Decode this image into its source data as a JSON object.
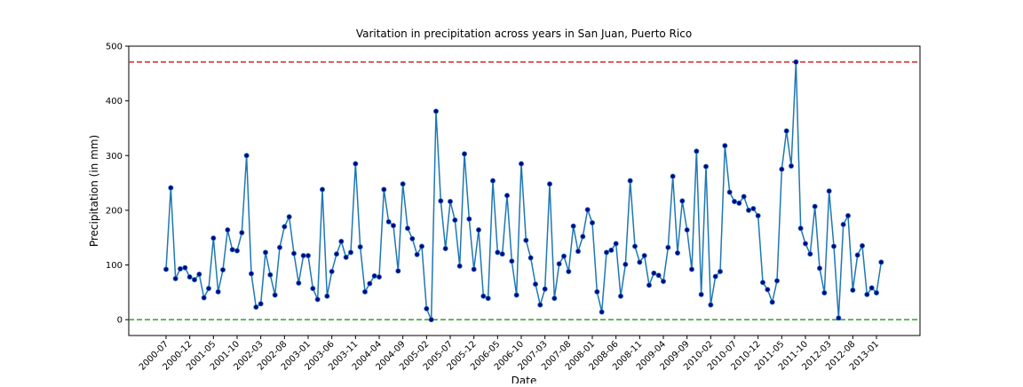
{
  "chart_data": {
    "type": "line",
    "title": "Varitation in precipitation across years in San Juan, Puerto Rico",
    "xlabel": "Date",
    "ylabel": "Precipitation (in mm)",
    "x": [
      "2000-07",
      "2000-08",
      "2000-09",
      "2000-10",
      "2000-11",
      "2000-12",
      "2001-01",
      "2001-02",
      "2001-03",
      "2001-04",
      "2001-05",
      "2001-06",
      "2001-07",
      "2001-08",
      "2001-09",
      "2001-10",
      "2001-11",
      "2001-12",
      "2002-01",
      "2002-02",
      "2002-03",
      "2002-04",
      "2002-05",
      "2002-06",
      "2002-07",
      "2002-08",
      "2002-09",
      "2002-10",
      "2002-11",
      "2002-12",
      "2003-01",
      "2003-02",
      "2003-03",
      "2003-04",
      "2003-05",
      "2003-06",
      "2003-07",
      "2003-08",
      "2003-09",
      "2003-10",
      "2003-11",
      "2003-12",
      "2004-01",
      "2004-02",
      "2004-03",
      "2004-04",
      "2004-05",
      "2004-06",
      "2004-07",
      "2004-08",
      "2004-09",
      "2004-10",
      "2004-11",
      "2004-12",
      "2005-01",
      "2005-02",
      "2005-03",
      "2005-04",
      "2005-05",
      "2005-06",
      "2005-07",
      "2005-08",
      "2005-09",
      "2005-10",
      "2005-11",
      "2005-12",
      "2006-01",
      "2006-02",
      "2006-03",
      "2006-04",
      "2006-05",
      "2006-06",
      "2006-07",
      "2006-08",
      "2006-09",
      "2006-10",
      "2006-11",
      "2006-12",
      "2007-01",
      "2007-02",
      "2007-03",
      "2007-04",
      "2007-05",
      "2007-06",
      "2007-07",
      "2007-08",
      "2007-09",
      "2007-10",
      "2007-11",
      "2007-12",
      "2008-01",
      "2008-02",
      "2008-03",
      "2008-04",
      "2008-05",
      "2008-06",
      "2008-07",
      "2008-08",
      "2008-09",
      "2008-10",
      "2008-11",
      "2008-12",
      "2009-01",
      "2009-02",
      "2009-03",
      "2009-04",
      "2009-05",
      "2009-06",
      "2009-07",
      "2009-08",
      "2009-09",
      "2009-10",
      "2009-11",
      "2009-12",
      "2010-01",
      "2010-02",
      "2010-03",
      "2010-04",
      "2010-05",
      "2010-06",
      "2010-07",
      "2010-08",
      "2010-09",
      "2010-10",
      "2010-11",
      "2010-12",
      "2011-01",
      "2011-02",
      "2011-03",
      "2011-04",
      "2011-05",
      "2011-06",
      "2011-07",
      "2011-08",
      "2011-09",
      "2011-10",
      "2011-11",
      "2011-12",
      "2012-01",
      "2012-02",
      "2012-03",
      "2012-04",
      "2012-05",
      "2012-06",
      "2012-07",
      "2012-08",
      "2012-09",
      "2012-10",
      "2012-11",
      "2012-12",
      "2013-01",
      "2013-02"
    ],
    "values": [
      92,
      241,
      75,
      93,
      95,
      78,
      73,
      83,
      40,
      57,
      149,
      51,
      91,
      164,
      128,
      126,
      159,
      300,
      84,
      23,
      29,
      123,
      82,
      45,
      132,
      170,
      188,
      121,
      67,
      117,
      117,
      57,
      37,
      238,
      43,
      88,
      120,
      143,
      114,
      123,
      285,
      133,
      51,
      66,
      80,
      78,
      238,
      179,
      172,
      89,
      248,
      167,
      148,
      119,
      134,
      20,
      0,
      381,
      217,
      130,
      216,
      182,
      98,
      303,
      184,
      92,
      164,
      43,
      39,
      254,
      123,
      120,
      227,
      107,
      45,
      285,
      145,
      113,
      65,
      27,
      56,
      248,
      39,
      102,
      116,
      88,
      171,
      125,
      152,
      201,
      177,
      51,
      14,
      123,
      127,
      139,
      43,
      101,
      254,
      134,
      105,
      117,
      63,
      85,
      81,
      70,
      132,
      262,
      122,
      217,
      164,
      92,
      308,
      46,
      280,
      27,
      79,
      88,
      318,
      233,
      216,
      213,
      225,
      200,
      203,
      190,
      68,
      55,
      32,
      71,
      275,
      345,
      281,
      471,
      167,
      139,
      120,
      207,
      94,
      49,
      235,
      134,
      3,
      174,
      190,
      54,
      118,
      135,
      46,
      58,
      49,
      105
    ],
    "color": "#1f77b4",
    "marker_color": "#00008b",
    "xticks": [
      "2000-07",
      "2000-12",
      "2001-05",
      "2001-10",
      "2002-03",
      "2002-08",
      "2003-01",
      "2003-06",
      "2003-11",
      "2004-04",
      "2004-09",
      "2005-02",
      "2005-07",
      "2005-12",
      "2006-05",
      "2006-10",
      "2007-03",
      "2007-08",
      "2008-01",
      "2008-06",
      "2008-11",
      "2009-04",
      "2009-09",
      "2010-02",
      "2010-07",
      "2010-12",
      "2011-05",
      "2011-10",
      "2012-03",
      "2012-08",
      "2013-01"
    ],
    "ylim": [
      -29,
      500
    ],
    "yticks": [
      0,
      100,
      200,
      300,
      400,
      500
    ],
    "hlines": [
      {
        "value": 471,
        "color": "#d62728"
      },
      {
        "value": 0,
        "color": "#2ca02c"
      }
    ]
  }
}
